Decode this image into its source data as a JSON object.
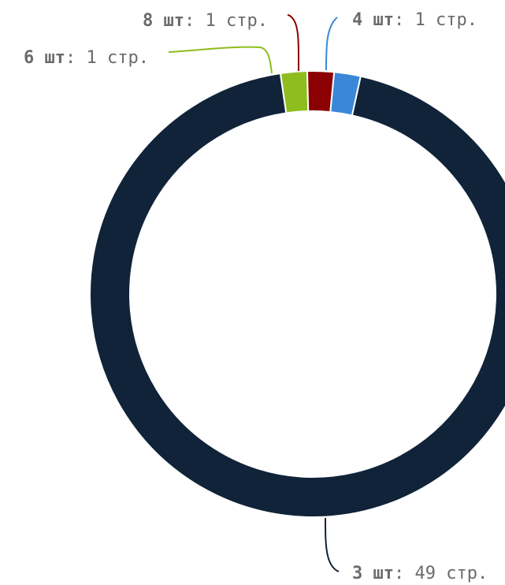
{
  "chart_data": {
    "type": "pie",
    "variant": "donut",
    "legend": "none",
    "slices": [
      {
        "label": "4 шт",
        "value": 1,
        "value_text": "1 стр.",
        "color": "#3a87d8"
      },
      {
        "label": "3 шт",
        "value": 49,
        "value_text": "49 стр.",
        "color": "#112339"
      },
      {
        "label": "6 шт",
        "value": 1,
        "value_text": "1 стр.",
        "color": "#8fbd1f"
      },
      {
        "label": "8 шт",
        "value": 1,
        "value_text": "1 стр.",
        "color": "#8b0000"
      }
    ]
  }
}
